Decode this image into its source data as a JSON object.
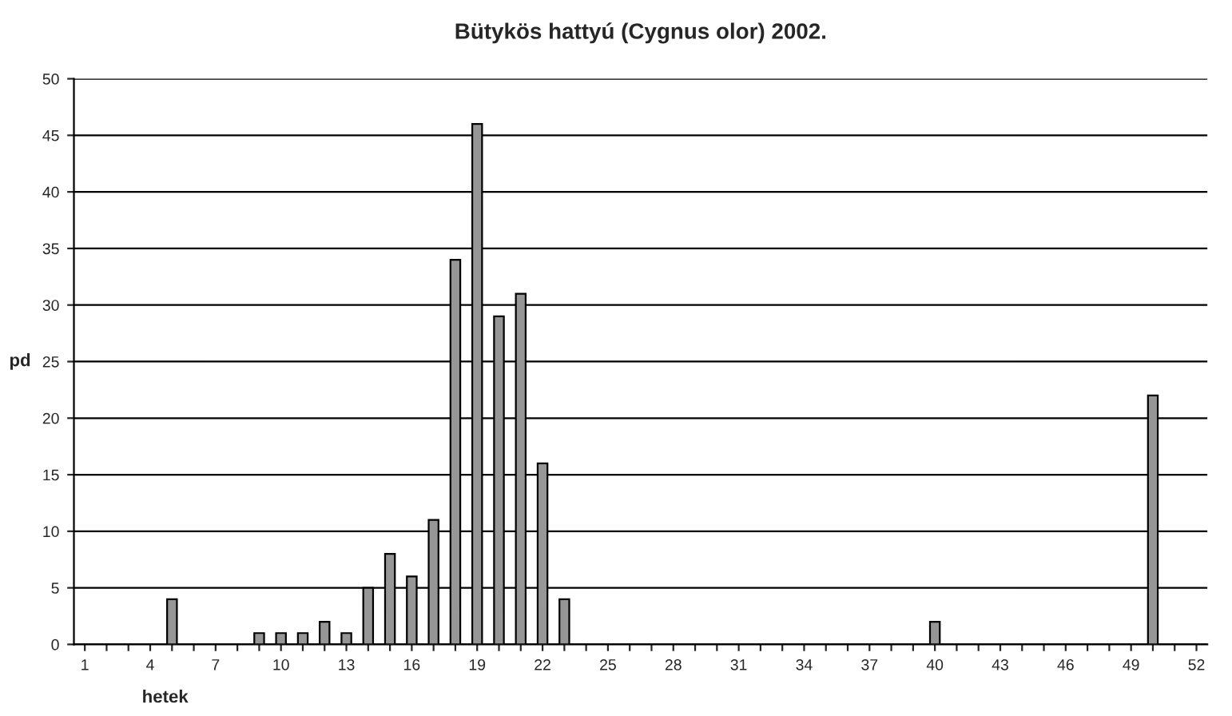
{
  "chart_data": {
    "type": "bar",
    "title": "Bütykös hattyú (Cygnus olor) 2002.",
    "xlabel": "hetek",
    "ylabel": "pd",
    "categories": [
      "1",
      null,
      null,
      "4",
      null,
      null,
      "7",
      null,
      null,
      "10",
      null,
      null,
      "13",
      null,
      null,
      "16",
      null,
      null,
      "19",
      null,
      null,
      "22",
      null,
      null,
      "25",
      null,
      null,
      "28",
      null,
      null,
      "31",
      null,
      null,
      "34",
      null,
      null,
      "37",
      null,
      null,
      "40",
      null,
      null,
      "43",
      null,
      null,
      "46",
      null,
      null,
      "49",
      null,
      null,
      "52"
    ],
    "values": [
      0,
      0,
      0,
      0,
      4,
      0,
      0,
      0,
      1,
      1,
      1,
      2,
      1,
      5,
      8,
      6,
      11,
      34,
      46,
      29,
      31,
      16,
      4,
      0,
      0,
      0,
      0,
      0,
      0,
      0,
      0,
      0,
      0,
      0,
      0,
      0,
      0,
      0,
      0,
      2,
      0,
      0,
      0,
      0,
      0,
      0,
      0,
      0,
      0,
      22,
      0,
      0
    ],
    "color": "#969696",
    "ylim": [
      0,
      50
    ],
    "yticks": [
      0,
      5,
      10,
      15,
      20,
      25,
      30,
      35,
      40,
      45,
      50
    ],
    "grid": "y"
  }
}
